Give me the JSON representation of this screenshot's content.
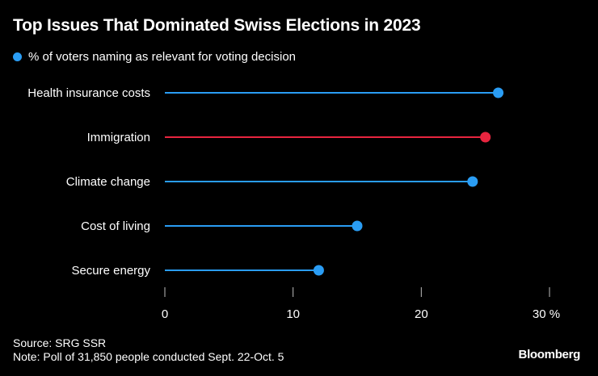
{
  "title": "Top Issues That Dominated Swiss Elections in 2023",
  "legend": {
    "label": "% of voters naming as relevant for voting decision",
    "color": "#2a9df4"
  },
  "chart_data": {
    "type": "lollipop",
    "title": "Top Issues That Dominated Swiss Elections in 2023",
    "xlabel": "%",
    "ylabel": "",
    "xlim": [
      0,
      30
    ],
    "xticks": [
      0,
      10,
      20,
      30
    ],
    "xtick_labels": [
      "0",
      "10",
      "20",
      "30 %"
    ],
    "categories": [
      "Health insurance costs",
      "Immigration",
      "Climate change",
      "Cost of living",
      "Secure energy"
    ],
    "values": [
      26,
      25,
      24,
      15,
      12
    ],
    "colors": [
      "#2a9df4",
      "#e8253f",
      "#2a9df4",
      "#2a9df4",
      "#2a9df4"
    ],
    "grid": false
  },
  "footer": {
    "source": "Source: SRG SSR",
    "note": "Note: Poll of 31,850 people conducted Sept. 22-Oct. 5",
    "brand": "Bloomberg"
  }
}
